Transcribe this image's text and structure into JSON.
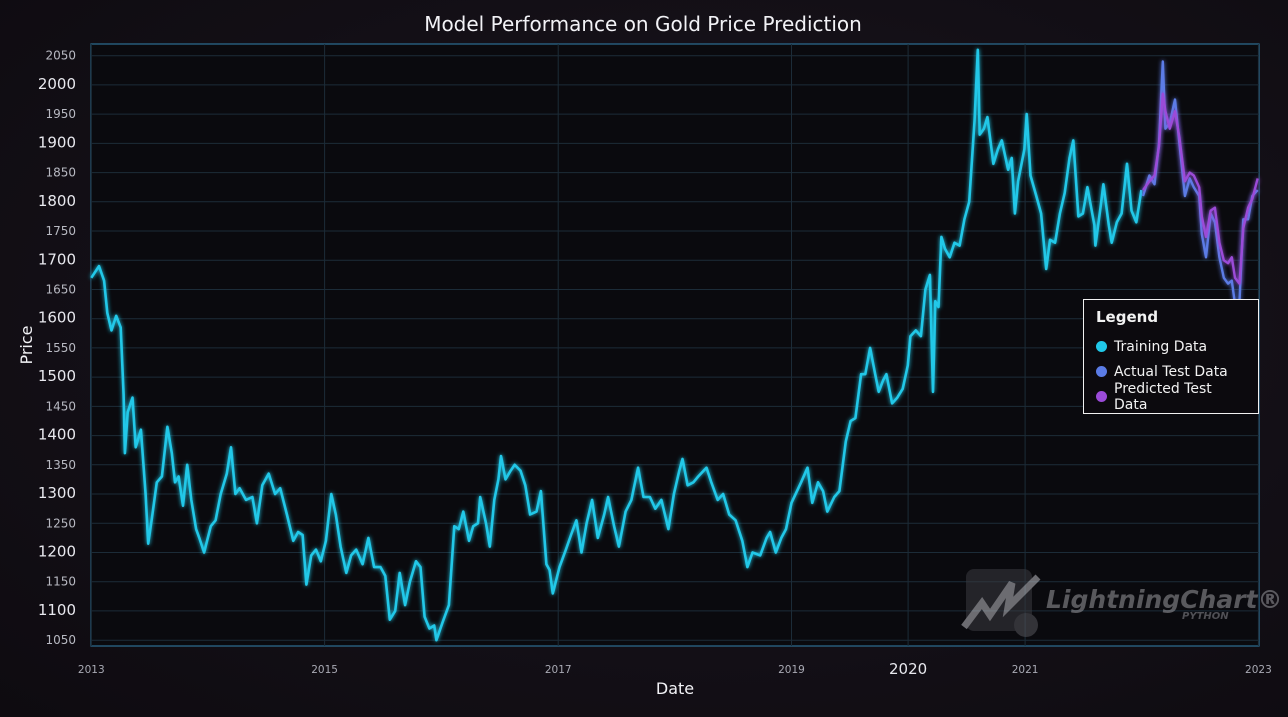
{
  "chart_data": {
    "type": "line",
    "title": "Model Performance on Gold Price Prediction",
    "xlabel": "Date",
    "ylabel": "Price",
    "xlim": [
      "2012-12-31",
      "2023-01-03"
    ],
    "ylim": [
      1040,
      2070
    ],
    "y_ticks": [
      1050,
      1100,
      1150,
      1200,
      1250,
      1300,
      1350,
      1400,
      1450,
      1500,
      1550,
      1600,
      1650,
      1700,
      1750,
      1800,
      1850,
      1900,
      1950,
      2000,
      2050
    ],
    "x_ticks": [
      {
        "label": "2013",
        "date": "2013-01-01"
      },
      {
        "label": "2015",
        "date": "2015-01-01"
      },
      {
        "label": "2017",
        "date": "2017-01-01"
      },
      {
        "label": "2019",
        "date": "2019-01-01"
      },
      {
        "label": "2020",
        "date": "2020-01-01"
      },
      {
        "label": "2021",
        "date": "2021-01-01"
      },
      {
        "label": "2023",
        "date": "2023-01-01"
      }
    ],
    "grid": true,
    "legend": {
      "title": "Legend",
      "position": "right"
    },
    "series": [
      {
        "name": "Training Data",
        "color": "#20c8e8",
        "points": [
          [
            "2013-01-01",
            1670
          ],
          [
            "2013-01-25",
            1690
          ],
          [
            "2013-02-10",
            1665
          ],
          [
            "2013-02-20",
            1610
          ],
          [
            "2013-03-05",
            1580
          ],
          [
            "2013-03-20",
            1605
          ],
          [
            "2013-04-03",
            1585
          ],
          [
            "2013-04-12",
            1470
          ],
          [
            "2013-04-16",
            1370
          ],
          [
            "2013-04-25",
            1440
          ],
          [
            "2013-05-10",
            1465
          ],
          [
            "2013-05-20",
            1380
          ],
          [
            "2013-06-05",
            1410
          ],
          [
            "2013-06-20",
            1300
          ],
          [
            "2013-06-28",
            1215
          ],
          [
            "2013-07-10",
            1260
          ],
          [
            "2013-07-25",
            1320
          ],
          [
            "2013-08-10",
            1330
          ],
          [
            "2013-08-27",
            1415
          ],
          [
            "2013-09-10",
            1370
          ],
          [
            "2013-09-20",
            1320
          ],
          [
            "2013-10-01",
            1330
          ],
          [
            "2013-10-15",
            1280
          ],
          [
            "2013-10-28",
            1350
          ],
          [
            "2013-11-10",
            1290
          ],
          [
            "2013-11-25",
            1240
          ],
          [
            "2013-12-05",
            1225
          ],
          [
            "2013-12-20",
            1200
          ],
          [
            "2014-01-10",
            1245
          ],
          [
            "2014-01-25",
            1255
          ],
          [
            "2014-02-10",
            1300
          ],
          [
            "2014-03-01",
            1335
          ],
          [
            "2014-03-14",
            1380
          ],
          [
            "2014-03-28",
            1300
          ],
          [
            "2014-04-10",
            1310
          ],
          [
            "2014-04-30",
            1290
          ],
          [
            "2014-05-20",
            1295
          ],
          [
            "2014-06-03",
            1250
          ],
          [
            "2014-06-20",
            1315
          ],
          [
            "2014-07-10",
            1335
          ],
          [
            "2014-07-30",
            1300
          ],
          [
            "2014-08-15",
            1310
          ],
          [
            "2014-09-05",
            1265
          ],
          [
            "2014-09-25",
            1220
          ],
          [
            "2014-10-10",
            1235
          ],
          [
            "2014-10-24",
            1230
          ],
          [
            "2014-11-05",
            1145
          ],
          [
            "2014-11-20",
            1195
          ],
          [
            "2014-12-05",
            1205
          ],
          [
            "2014-12-20",
            1185
          ],
          [
            "2015-01-05",
            1220
          ],
          [
            "2015-01-22",
            1300
          ],
          [
            "2015-02-05",
            1265
          ],
          [
            "2015-02-20",
            1210
          ],
          [
            "2015-03-10",
            1165
          ],
          [
            "2015-03-25",
            1195
          ],
          [
            "2015-04-10",
            1205
          ],
          [
            "2015-04-30",
            1180
          ],
          [
            "2015-05-18",
            1225
          ],
          [
            "2015-06-05",
            1175
          ],
          [
            "2015-06-25",
            1175
          ],
          [
            "2015-07-10",
            1160
          ],
          [
            "2015-07-24",
            1085
          ],
          [
            "2015-08-10",
            1100
          ],
          [
            "2015-08-24",
            1165
          ],
          [
            "2015-09-10",
            1110
          ],
          [
            "2015-09-25",
            1150
          ],
          [
            "2015-10-14",
            1185
          ],
          [
            "2015-10-28",
            1175
          ],
          [
            "2015-11-10",
            1090
          ],
          [
            "2015-11-25",
            1070
          ],
          [
            "2015-12-10",
            1075
          ],
          [
            "2015-12-17",
            1050
          ],
          [
            "2016-01-05",
            1080
          ],
          [
            "2016-01-25",
            1110
          ],
          [
            "2016-02-11",
            1245
          ],
          [
            "2016-02-25",
            1240
          ],
          [
            "2016-03-10",
            1270
          ],
          [
            "2016-03-28",
            1220
          ],
          [
            "2016-04-10",
            1245
          ],
          [
            "2016-04-25",
            1250
          ],
          [
            "2016-05-02",
            1295
          ],
          [
            "2016-05-20",
            1250
          ],
          [
            "2016-06-01",
            1210
          ],
          [
            "2016-06-15",
            1290
          ],
          [
            "2016-06-28",
            1325
          ],
          [
            "2016-07-06",
            1365
          ],
          [
            "2016-07-20",
            1325
          ],
          [
            "2016-08-05",
            1340
          ],
          [
            "2016-08-18",
            1350
          ],
          [
            "2016-09-05",
            1340
          ],
          [
            "2016-09-20",
            1315
          ],
          [
            "2016-10-05",
            1265
          ],
          [
            "2016-10-25",
            1270
          ],
          [
            "2016-11-08",
            1305
          ],
          [
            "2016-11-25",
            1180
          ],
          [
            "2016-12-05",
            1170
          ],
          [
            "2016-12-15",
            1130
          ],
          [
            "2017-01-05",
            1175
          ],
          [
            "2017-01-25",
            1205
          ],
          [
            "2017-02-10",
            1230
          ],
          [
            "2017-02-27",
            1255
          ],
          [
            "2017-03-15",
            1200
          ],
          [
            "2017-03-31",
            1250
          ],
          [
            "2017-04-17",
            1290
          ],
          [
            "2017-05-05",
            1225
          ],
          [
            "2017-05-25",
            1265
          ],
          [
            "2017-06-06",
            1295
          ],
          [
            "2017-06-25",
            1245
          ],
          [
            "2017-07-10",
            1210
          ],
          [
            "2017-07-31",
            1270
          ],
          [
            "2017-08-18",
            1290
          ],
          [
            "2017-09-08",
            1345
          ],
          [
            "2017-09-25",
            1295
          ],
          [
            "2017-10-15",
            1295
          ],
          [
            "2017-11-01",
            1275
          ],
          [
            "2017-11-20",
            1290
          ],
          [
            "2017-12-12",
            1240
          ],
          [
            "2017-12-29",
            1300
          ],
          [
            "2018-01-15",
            1340
          ],
          [
            "2018-01-25",
            1360
          ],
          [
            "2018-02-10",
            1315
          ],
          [
            "2018-02-28",
            1320
          ],
          [
            "2018-03-15",
            1330
          ],
          [
            "2018-04-10",
            1345
          ],
          [
            "2018-04-25",
            1320
          ],
          [
            "2018-05-15",
            1290
          ],
          [
            "2018-06-01",
            1300
          ],
          [
            "2018-06-20",
            1265
          ],
          [
            "2018-07-10",
            1255
          ],
          [
            "2018-07-31",
            1220
          ],
          [
            "2018-08-16",
            1175
          ],
          [
            "2018-09-01",
            1200
          ],
          [
            "2018-09-25",
            1195
          ],
          [
            "2018-10-15",
            1225
          ],
          [
            "2018-10-26",
            1235
          ],
          [
            "2018-11-13",
            1200
          ],
          [
            "2018-11-30",
            1225
          ],
          [
            "2018-12-15",
            1240
          ],
          [
            "2019-01-01",
            1285
          ],
          [
            "2019-01-31",
            1320
          ],
          [
            "2019-02-20",
            1345
          ],
          [
            "2019-03-07",
            1285
          ],
          [
            "2019-03-25",
            1320
          ],
          [
            "2019-04-10",
            1305
          ],
          [
            "2019-04-23",
            1270
          ],
          [
            "2019-05-15",
            1295
          ],
          [
            "2019-05-31",
            1305
          ],
          [
            "2019-06-20",
            1390
          ],
          [
            "2019-07-05",
            1425
          ],
          [
            "2019-07-20",
            1430
          ],
          [
            "2019-08-07",
            1505
          ],
          [
            "2019-08-20",
            1505
          ],
          [
            "2019-09-04",
            1550
          ],
          [
            "2019-09-20",
            1505
          ],
          [
            "2019-10-01",
            1475
          ],
          [
            "2019-10-15",
            1495
          ],
          [
            "2019-10-25",
            1505
          ],
          [
            "2019-11-12",
            1455
          ],
          [
            "2019-11-28",
            1465
          ],
          [
            "2019-12-15",
            1480
          ],
          [
            "2019-12-31",
            1520
          ],
          [
            "2020-01-08",
            1570
          ],
          [
            "2020-01-25",
            1580
          ],
          [
            "2020-02-10",
            1570
          ],
          [
            "2020-02-24",
            1650
          ],
          [
            "2020-03-09",
            1675
          ],
          [
            "2020-03-19",
            1475
          ],
          [
            "2020-03-26",
            1630
          ],
          [
            "2020-04-05",
            1620
          ],
          [
            "2020-04-14",
            1740
          ],
          [
            "2020-04-25",
            1720
          ],
          [
            "2020-05-10",
            1705
          ],
          [
            "2020-05-25",
            1730
          ],
          [
            "2020-06-10",
            1725
          ],
          [
            "2020-06-25",
            1770
          ],
          [
            "2020-07-10",
            1800
          ],
          [
            "2020-07-27",
            1940
          ],
          [
            "2020-08-06",
            2060
          ],
          [
            "2020-08-12",
            1915
          ],
          [
            "2020-08-25",
            1925
          ],
          [
            "2020-09-05",
            1945
          ],
          [
            "2020-09-24",
            1865
          ],
          [
            "2020-10-08",
            1890
          ],
          [
            "2020-10-20",
            1905
          ],
          [
            "2020-11-09",
            1855
          ],
          [
            "2020-11-20",
            1875
          ],
          [
            "2020-11-30",
            1780
          ],
          [
            "2020-12-10",
            1835
          ],
          [
            "2020-12-30",
            1890
          ],
          [
            "2021-01-06",
            1950
          ],
          [
            "2021-01-18",
            1845
          ],
          [
            "2021-02-05",
            1810
          ],
          [
            "2021-02-20",
            1780
          ],
          [
            "2021-03-08",
            1685
          ],
          [
            "2021-03-20",
            1735
          ],
          [
            "2021-04-05",
            1730
          ],
          [
            "2021-04-20",
            1780
          ],
          [
            "2021-05-05",
            1815
          ],
          [
            "2021-05-20",
            1875
          ],
          [
            "2021-06-01",
            1905
          ],
          [
            "2021-06-17",
            1775
          ],
          [
            "2021-07-01",
            1780
          ],
          [
            "2021-07-15",
            1825
          ],
          [
            "2021-08-06",
            1760
          ],
          [
            "2021-08-09",
            1725
          ],
          [
            "2021-08-25",
            1790
          ],
          [
            "2021-09-03",
            1830
          ],
          [
            "2021-09-20",
            1760
          ],
          [
            "2021-09-29",
            1730
          ],
          [
            "2021-10-15",
            1765
          ],
          [
            "2021-10-30",
            1780
          ],
          [
            "2021-11-16",
            1865
          ],
          [
            "2021-11-30",
            1785
          ],
          [
            "2021-12-15",
            1765
          ],
          [
            "2021-12-31",
            1820
          ]
        ]
      },
      {
        "name": "Actual Test Data",
        "color": "#5b7ce6",
        "points": [
          [
            "2022-01-05",
            1810
          ],
          [
            "2022-01-25",
            1845
          ],
          [
            "2022-02-10",
            1830
          ],
          [
            "2022-02-24",
            1900
          ],
          [
            "2022-03-08",
            2040
          ],
          [
            "2022-03-16",
            1925
          ],
          [
            "2022-03-30",
            1935
          ],
          [
            "2022-04-15",
            1975
          ],
          [
            "2022-04-29",
            1900
          ],
          [
            "2022-05-16",
            1810
          ],
          [
            "2022-05-31",
            1840
          ],
          [
            "2022-06-13",
            1825
          ],
          [
            "2022-06-30",
            1810
          ],
          [
            "2022-07-08",
            1745
          ],
          [
            "2022-07-21",
            1705
          ],
          [
            "2022-08-05",
            1780
          ],
          [
            "2022-08-18",
            1765
          ],
          [
            "2022-09-01",
            1705
          ],
          [
            "2022-09-15",
            1670
          ],
          [
            "2022-09-28",
            1660
          ],
          [
            "2022-10-10",
            1665
          ],
          [
            "2022-10-20",
            1625
          ],
          [
            "2022-11-03",
            1630
          ],
          [
            "2022-11-15",
            1770
          ],
          [
            "2022-11-30",
            1770
          ],
          [
            "2022-12-13",
            1810
          ],
          [
            "2022-12-30",
            1820
          ]
        ]
      },
      {
        "name": "Predicted Test Data",
        "color": "#9b4bd8",
        "points": [
          [
            "2022-01-05",
            1820
          ],
          [
            "2022-01-25",
            1835
          ],
          [
            "2022-02-10",
            1845
          ],
          [
            "2022-02-24",
            1895
          ],
          [
            "2022-03-08",
            1985
          ],
          [
            "2022-03-16",
            1955
          ],
          [
            "2022-03-30",
            1925
          ],
          [
            "2022-04-15",
            1955
          ],
          [
            "2022-04-29",
            1910
          ],
          [
            "2022-05-16",
            1835
          ],
          [
            "2022-05-31",
            1850
          ],
          [
            "2022-06-13",
            1845
          ],
          [
            "2022-06-30",
            1825
          ],
          [
            "2022-07-08",
            1775
          ],
          [
            "2022-07-21",
            1740
          ],
          [
            "2022-08-05",
            1785
          ],
          [
            "2022-08-18",
            1790
          ],
          [
            "2022-09-01",
            1730
          ],
          [
            "2022-09-15",
            1700
          ],
          [
            "2022-09-28",
            1695
          ],
          [
            "2022-10-10",
            1705
          ],
          [
            "2022-10-20",
            1670
          ],
          [
            "2022-11-03",
            1660
          ],
          [
            "2022-11-15",
            1755
          ],
          [
            "2022-11-30",
            1790
          ],
          [
            "2022-12-13",
            1805
          ],
          [
            "2022-12-30",
            1840
          ]
        ]
      }
    ]
  },
  "watermark": {
    "brand": "LightningChart®",
    "sub": "PYTHON"
  }
}
